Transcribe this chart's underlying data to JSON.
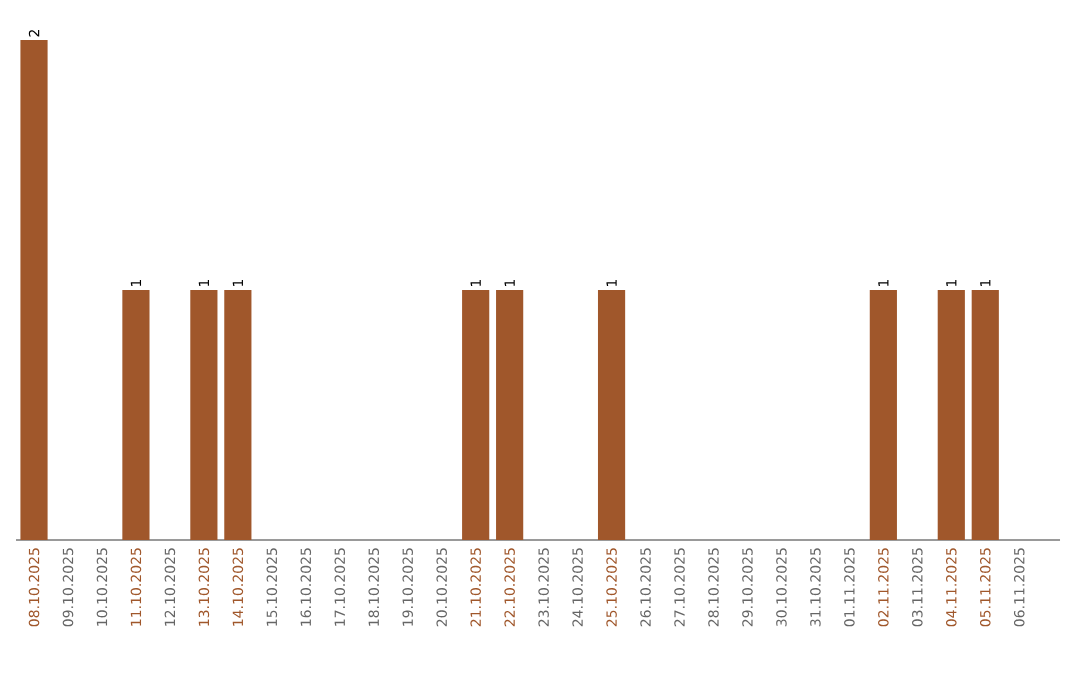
{
  "chart_data": {
    "type": "bar",
    "categories": [
      "08.10.2025",
      "09.10.2025",
      "10.10.2025",
      "11.10.2025",
      "12.10.2025",
      "13.10.2025",
      "14.10.2025",
      "15.10.2025",
      "16.10.2025",
      "17.10.2025",
      "18.10.2025",
      "19.10.2025",
      "20.10.2025",
      "21.10.2025",
      "22.10.2025",
      "23.10.2025",
      "24.10.2025",
      "25.10.2025",
      "26.10.2025",
      "27.10.2025",
      "28.10.2025",
      "29.10.2025",
      "30.10.2025",
      "31.10.2025",
      "01.11.2025",
      "02.11.2025",
      "03.11.2025",
      "04.11.2025",
      "05.11.2025",
      "06.11.2025"
    ],
    "values": [
      2,
      0,
      0,
      1,
      0,
      1,
      1,
      0,
      0,
      0,
      0,
      0,
      0,
      1,
      1,
      0,
      0,
      1,
      0,
      0,
      0,
      0,
      0,
      0,
      0,
      1,
      0,
      1,
      1,
      0
    ],
    "value_labels": [
      "2",
      null,
      null,
      "1",
      null,
      "1",
      "1",
      null,
      null,
      null,
      null,
      null,
      null,
      "1",
      "1",
      null,
      null,
      "1",
      null,
      null,
      null,
      null,
      null,
      null,
      null,
      "1",
      null,
      "1",
      "1",
      null
    ],
    "color": "#a0572b"
  }
}
